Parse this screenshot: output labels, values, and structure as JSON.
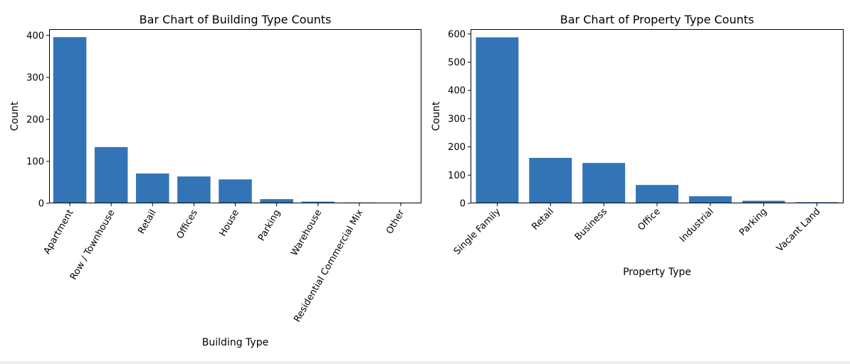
{
  "chart_data": [
    {
      "type": "bar",
      "title": "Bar Chart of Building Type Counts",
      "xlabel": "Building Type",
      "ylabel": "Count",
      "categories": [
        "Apartment",
        "Row / Townhouse",
        "Retail",
        "Offices",
        "House",
        "Parking",
        "Warehouse",
        "Residential Commercial Mix",
        "Other"
      ],
      "values": [
        396,
        134,
        71,
        64,
        57,
        10,
        4,
        2,
        1
      ],
      "ylim": [
        0,
        415
      ],
      "yticks": [
        0,
        100,
        200,
        300,
        400
      ],
      "tick_rotation": 60,
      "grid": false,
      "color": "#3274b5"
    },
    {
      "type": "bar",
      "title": "Bar Chart of Property Type Counts",
      "xlabel": "Property Type",
      "ylabel": "Count",
      "categories": [
        "Single Family",
        "Retail",
        "Business",
        "Office",
        "Industrial",
        "Parking",
        "Vacant Land"
      ],
      "values": [
        588,
        161,
        143,
        65,
        25,
        9,
        4
      ],
      "ylim": [
        0,
        617
      ],
      "yticks": [
        0,
        100,
        200,
        300,
        400,
        500,
        600
      ],
      "tick_rotation": 45,
      "grid": false,
      "color": "#3274b5"
    }
  ]
}
